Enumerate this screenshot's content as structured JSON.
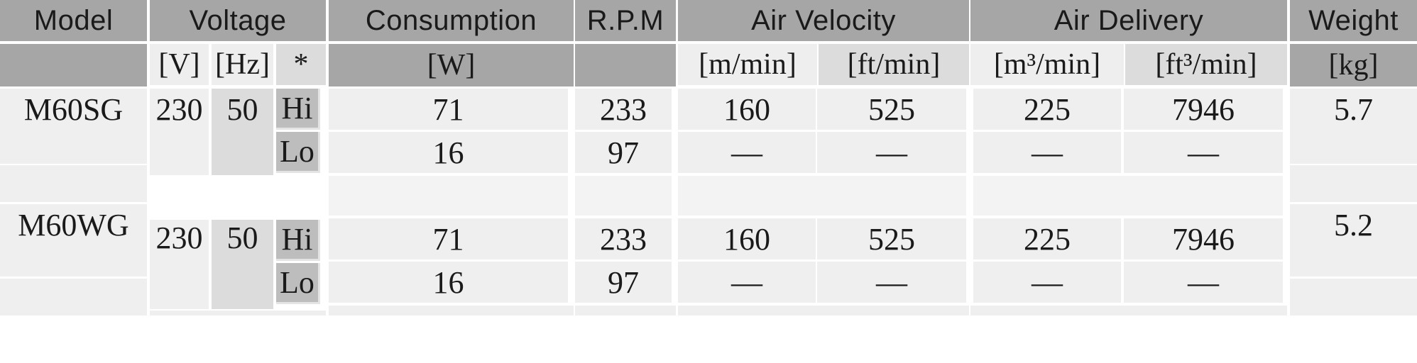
{
  "headers": {
    "model": "Model",
    "voltage": "Voltage",
    "consumption": "Consumption",
    "rpm": "R.P.M",
    "air_velocity": "Air Velocity",
    "air_delivery": "Air Delivery",
    "weight": "Weight"
  },
  "units": {
    "volt": "[V]",
    "hz": "[Hz]",
    "mode": "*",
    "watt": "[W]",
    "m_min": "[m/min]",
    "ft_min": "[ft/min]",
    "m3_min": "[m³/min]",
    "ft3_min": "[ft³/min]",
    "kg": "[kg]"
  },
  "models": [
    {
      "name": "M60SG",
      "volt": "230",
      "hz": "50",
      "weight": "5.7",
      "rows": [
        {
          "mode": "Hi",
          "watt": "71",
          "rpm": "233",
          "m_min": "160",
          "ft_min": "525",
          "m3_min": "225",
          "ft3_min": "7946"
        },
        {
          "mode": "Lo",
          "watt": "16",
          "rpm": "97",
          "m_min": "—",
          "ft_min": "—",
          "m3_min": "—",
          "ft3_min": "—"
        }
      ]
    },
    {
      "name": "M60WG",
      "volt": "230",
      "hz": "50",
      "weight": "5.2",
      "rows": [
        {
          "mode": "Hi",
          "watt": "71",
          "rpm": "233",
          "m_min": "160",
          "ft_min": "525",
          "m3_min": "225",
          "ft3_min": "7946"
        },
        {
          "mode": "Lo",
          "watt": "16",
          "rpm": "97",
          "m_min": "—",
          "ft_min": "—",
          "m3_min": "—",
          "ft3_min": "—"
        }
      ]
    }
  ]
}
